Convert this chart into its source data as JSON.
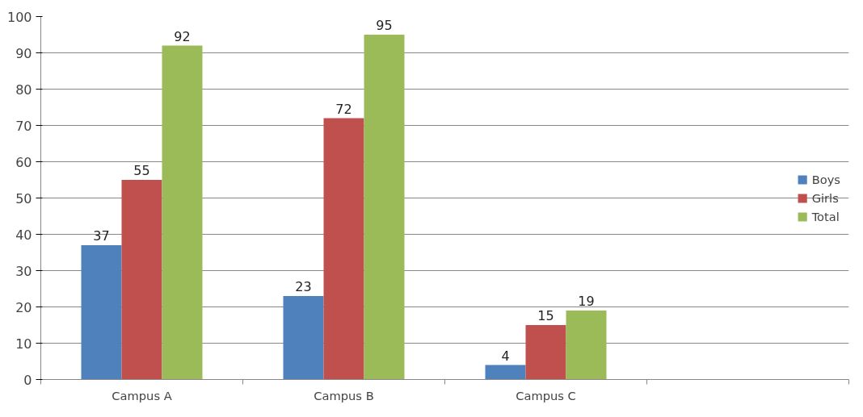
{
  "chart_data": {
    "type": "bar",
    "categories": [
      "Campus A",
      "Campus B",
      "Campus C",
      null
    ],
    "series": [
      {
        "name": "Boys",
        "color": "#4f81bd",
        "values": [
          37,
          23,
          4,
          null
        ]
      },
      {
        "name": "Girls",
        "color": "#c0504d",
        "values": [
          55,
          72,
          15,
          null
        ]
      },
      {
        "name": "Total",
        "color": "#9bbb59",
        "values": [
          92,
          95,
          19,
          null
        ]
      }
    ],
    "ylim": [
      0,
      100
    ],
    "yticks": [
      0,
      10,
      20,
      30,
      40,
      50,
      60,
      70,
      80,
      90,
      100
    ],
    "grid": "y",
    "legend": "right",
    "data_labels": true
  }
}
